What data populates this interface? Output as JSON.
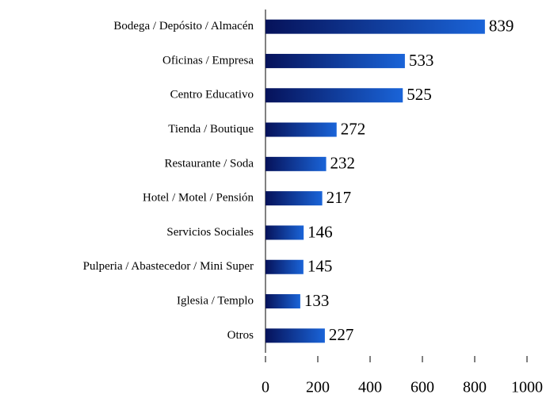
{
  "chart_data": {
    "type": "bar",
    "orientation": "horizontal",
    "categories": [
      "Bodega / Depósito / Almacén",
      "Oficinas / Empresa",
      "Centro Educativo",
      "Tienda / Boutique",
      "Restaurante / Soda",
      "Hotel / Motel / Pensión",
      "Servicios Sociales",
      "Pulperia / Abastecedor / Mini Super",
      "Iglesia / Templo",
      "Otros"
    ],
    "values": [
      839,
      533,
      525,
      272,
      232,
      217,
      146,
      145,
      133,
      227
    ],
    "color": "#1a64d8",
    "xlim": [
      0,
      1000
    ],
    "xticks": [
      0,
      200,
      400,
      600,
      800,
      1000
    ],
    "grid": false
  }
}
